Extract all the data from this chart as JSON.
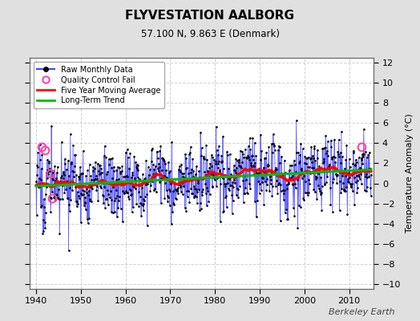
{
  "title": "FLYVESTATION AALBORG",
  "subtitle": "57.100 N, 9.863 E (Denmark)",
  "ylabel": "Temperature Anomaly (°C)",
  "watermark": "Berkeley Earth",
  "ylim": [
    -10.5,
    12.5
  ],
  "xlim": [
    1938.5,
    2015.5
  ],
  "yticks": [
    -10,
    -8,
    -6,
    -4,
    -2,
    0,
    2,
    4,
    6,
    8,
    10,
    12
  ],
  "xticks": [
    1940,
    1950,
    1960,
    1970,
    1980,
    1990,
    2000,
    2010
  ],
  "bg_color": "#e0e0e0",
  "plot_bg_color": "#ffffff",
  "grid_color": "#cccccc",
  "raw_line_color": "#4444ff",
  "raw_dot_color": "#000000",
  "ma_color": "#ff0000",
  "trend_color": "#00bb00",
  "qc_color": "#ff44aa",
  "trend_slope": 0.022,
  "trend_intercept": -0.28,
  "seed": 17,
  "qc_points": [
    [
      1941.2,
      3.6
    ],
    [
      1941.9,
      3.3
    ],
    [
      1943.2,
      1.0
    ],
    [
      1943.6,
      -1.5
    ],
    [
      2012.7,
      3.6
    ]
  ]
}
